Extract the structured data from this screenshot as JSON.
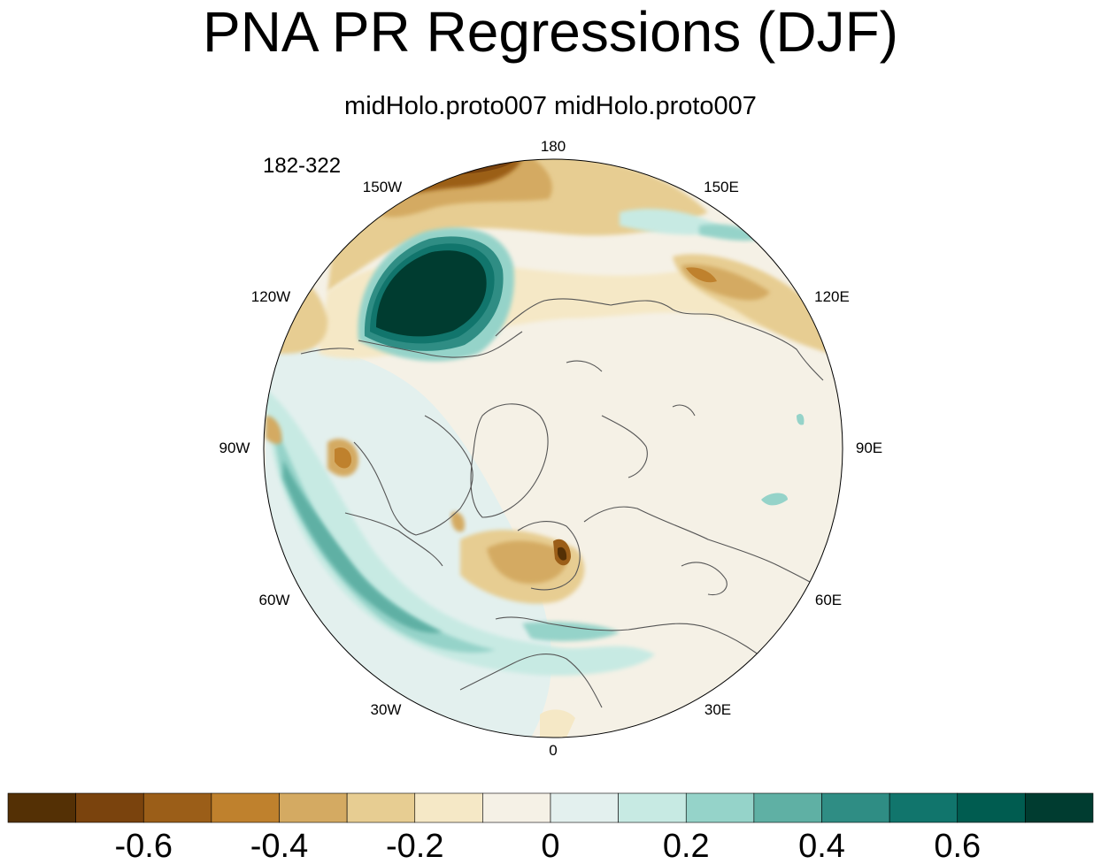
{
  "title": "PNA PR Regressions (DJF)",
  "subtitle": "midHolo.proto007  midHolo.proto007",
  "period_label": "182-322",
  "longitude_labels": [
    "180",
    "150E",
    "120E",
    "90E",
    "60E",
    "30E",
    "0",
    "30W",
    "60W",
    "90W",
    "120W",
    "150W"
  ],
  "colorbar": {
    "colors": [
      "#543005",
      "#7a430d",
      "#9b5e18",
      "#bf812d",
      "#d4aa62",
      "#e7cd92",
      "#f5e8c6",
      "#f5f1e6",
      "#e3f0ee",
      "#c7eae3",
      "#95d3c9",
      "#5fb0a4",
      "#2f8d84",
      "#11756c",
      "#005c50",
      "#003c30"
    ],
    "tick_labels": [
      "-0.6",
      "-0.4",
      "-0.2",
      "0",
      "0.2",
      "0.4",
      "0.6"
    ],
    "tick_boundaries": [
      2,
      4,
      6,
      8,
      10,
      12,
      14
    ]
  }
}
